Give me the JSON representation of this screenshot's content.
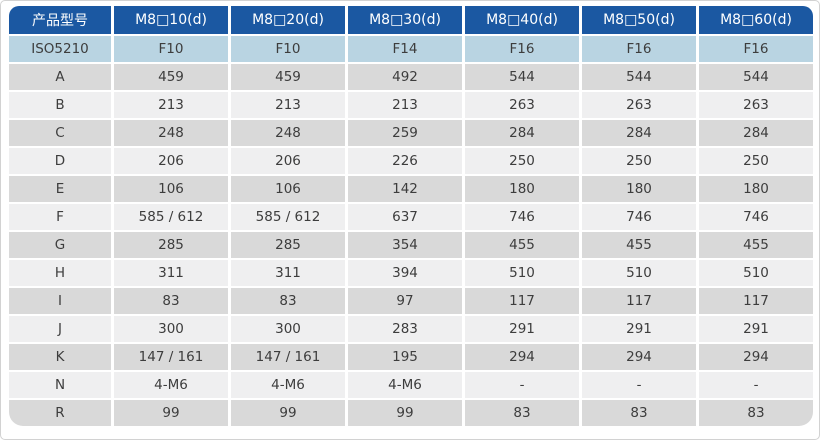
{
  "table": {
    "columns": [
      "产品型号",
      "M8□10(d)",
      "M8□20(d)",
      "M8□30(d)",
      "M8□40(d)",
      "M8□50(d)",
      "M8□60(d)"
    ],
    "rows": [
      {
        "label": "ISO5210",
        "highlight": true,
        "values": [
          "F10",
          "F10",
          "F14",
          "F16",
          "F16",
          "F16"
        ]
      },
      {
        "label": "A",
        "values": [
          "459",
          "459",
          "492",
          "544",
          "544",
          "544"
        ]
      },
      {
        "label": "B",
        "values": [
          "213",
          "213",
          "213",
          "263",
          "263",
          "263"
        ]
      },
      {
        "label": "C",
        "values": [
          "248",
          "248",
          "259",
          "284",
          "284",
          "284"
        ]
      },
      {
        "label": "D",
        "values": [
          "206",
          "206",
          "226",
          "250",
          "250",
          "250"
        ]
      },
      {
        "label": "E",
        "values": [
          "106",
          "106",
          "142",
          "180",
          "180",
          "180"
        ]
      },
      {
        "label": "F",
        "values": [
          "585 / 612",
          "585 / 612",
          "637",
          "746",
          "746",
          "746"
        ]
      },
      {
        "label": "G",
        "values": [
          "285",
          "285",
          "354",
          "455",
          "455",
          "455"
        ]
      },
      {
        "label": "H",
        "values": [
          "311",
          "311",
          "394",
          "510",
          "510",
          "510"
        ]
      },
      {
        "label": "I",
        "values": [
          "83",
          "83",
          "97",
          "117",
          "117",
          "117"
        ]
      },
      {
        "label": "J",
        "values": [
          "300",
          "300",
          "283",
          "291",
          "291",
          "291"
        ]
      },
      {
        "label": "K",
        "values": [
          "147 / 161",
          "147 / 161",
          "195",
          "294",
          "294",
          "294"
        ]
      },
      {
        "label": "N",
        "values": [
          "4-M6",
          "4-M6",
          "4-M6",
          "-",
          "-",
          "-"
        ]
      },
      {
        "label": "R",
        "values": [
          "99",
          "99",
          "99",
          "83",
          "83",
          "83"
        ]
      }
    ],
    "colors": {
      "header_bg": "#1b58a2",
      "header_text": "#ffffff",
      "highlight_row_bg": "#b9d4e2",
      "odd_row_bg": "#d9d9d9",
      "even_row_bg": "#efeff0",
      "body_text": "#3d3d3d",
      "grid_lines": "#ffffff"
    }
  }
}
